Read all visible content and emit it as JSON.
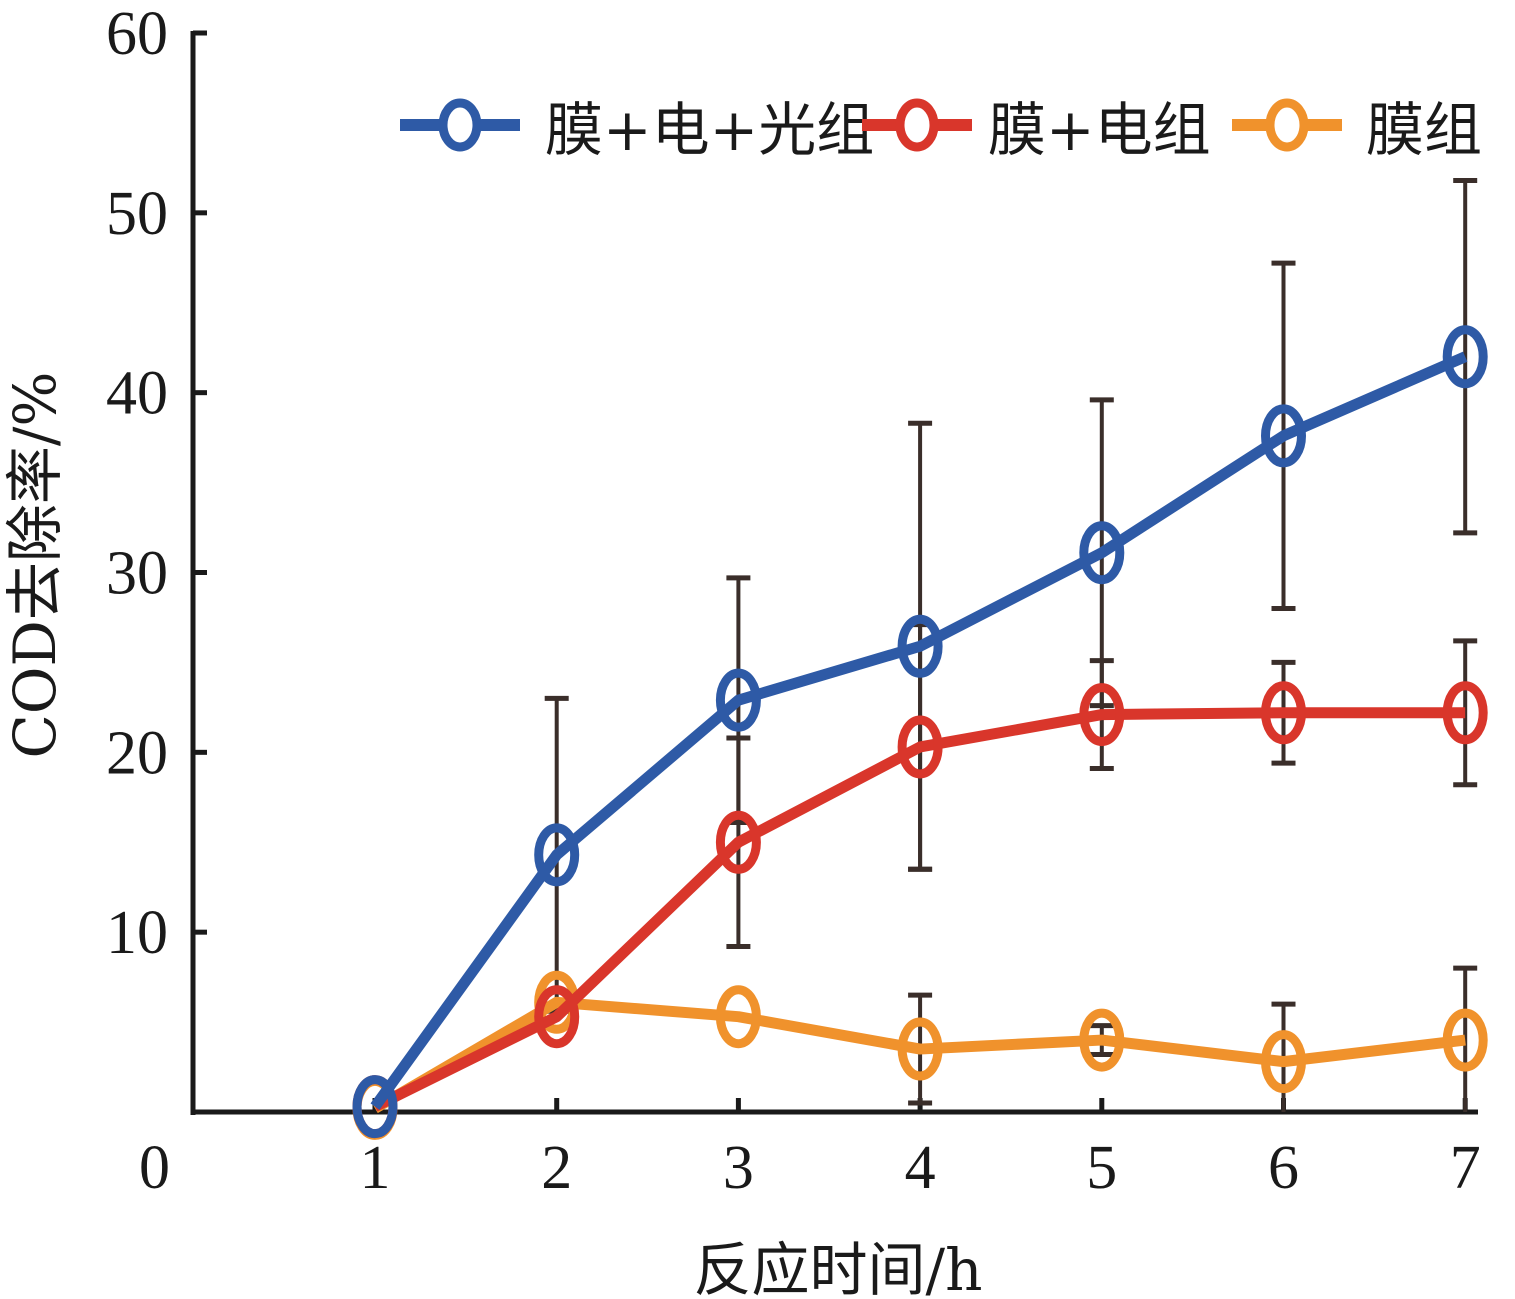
{
  "chart_data": {
    "type": "line",
    "title": "",
    "xlabel": "反应时间/h",
    "ylabel": "COD去除率/%",
    "x": [
      1,
      2,
      3,
      4,
      5,
      6,
      7
    ],
    "xlim": [
      0,
      7
    ],
    "ylim": [
      0,
      60
    ],
    "xticks": [
      1,
      2,
      3,
      4,
      5,
      6,
      7
    ],
    "yticks": [
      0,
      10,
      20,
      30,
      40,
      50,
      60
    ],
    "xtick_labels": [
      "1",
      "2",
      "3",
      "4",
      "5",
      "6",
      "7"
    ],
    "ytick_labels": [
      "0",
      "10",
      "20",
      "30",
      "40",
      "50",
      "60"
    ],
    "grid": false,
    "legend_position": "top-right",
    "marker": "open-circle",
    "error_bars": true,
    "series": [
      {
        "name": "膜+电+光组",
        "color": "#2e5aa6",
        "values": [
          0.3,
          14.3,
          22.9,
          25.9,
          31.1,
          37.6,
          42.0
        ],
        "error": [
          0,
          8.7,
          6.8,
          12.4,
          8.5,
          9.6,
          9.8
        ]
      },
      {
        "name": "膜+电组",
        "color": "#d9362b",
        "values": [
          0.3,
          5.3,
          15.0,
          20.3,
          22.1,
          22.2,
          22.2
        ],
        "error": [
          0,
          0,
          5.8,
          6.8,
          3.0,
          2.8,
          4.0
        ]
      },
      {
        "name": "膜组",
        "color": "#f0922c",
        "values": [
          0.2,
          6.1,
          5.3,
          3.5,
          4.0,
          2.8,
          4.0
        ],
        "error": [
          0,
          0,
          0,
          3.0,
          0.8,
          3.2,
          4.0
        ]
      }
    ]
  }
}
